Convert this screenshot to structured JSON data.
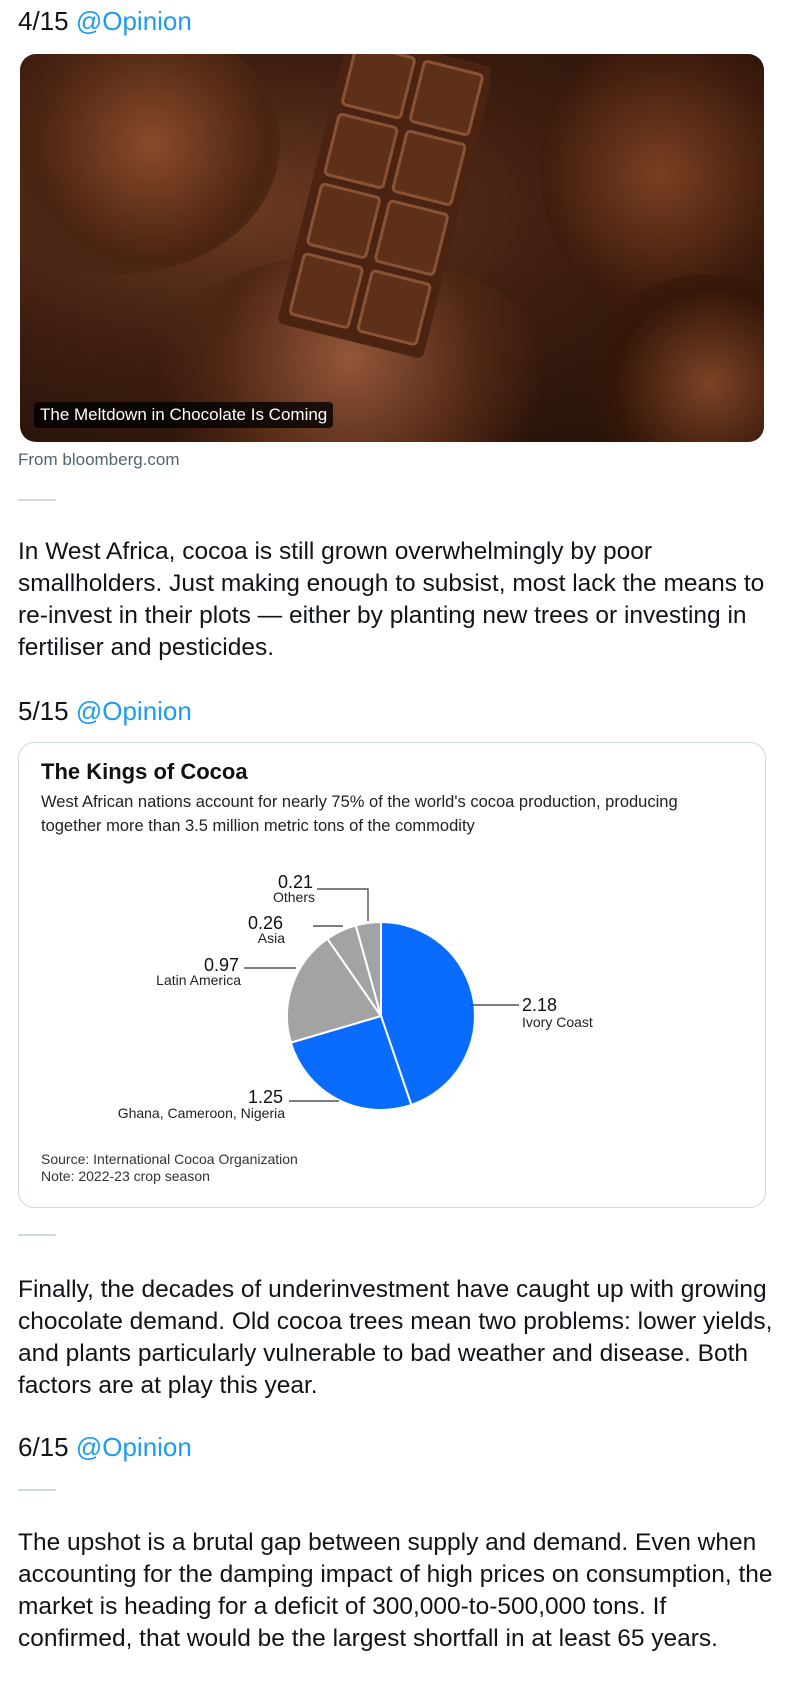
{
  "tweets": [
    {
      "index": "4/15",
      "handle": "@Opinion"
    },
    {
      "index": "5/15",
      "handle": "@Opinion"
    },
    {
      "index": "6/15",
      "handle": "@Opinion"
    }
  ],
  "link_card": {
    "headline": "The Meltdown in Chocolate Is Coming",
    "source": "From bloomberg.com"
  },
  "paragraphs": [
    "In West Africa, cocoa is still grown overwhelmingly by poor smallholders. Just making enough to subsist, most lack the means to re-invest in their plots — either by planting new trees or investing in fertiliser and pesticides.",
    "Finally, the decades of underinvestment have caught up with growing chocolate demand. Old cocoa trees mean two problems:  lower yields, and plants particularly vulnerable to bad weather and disease. Both factors are at play this year.",
    "The upshot is a brutal gap between supply and demand. Even when accounting for the damping impact of high prices on consumption, the market is heading for a deficit of 300,000-to-500,000 tons. If confirmed, that would be the largest shortfall in at least 65 years."
  ],
  "chart_data": {
    "type": "pie",
    "title": "The Kings of Cocoa",
    "subtitle": "West African nations account for nearly 75% of the world's cocoa production, producing together more than 3.5 million metric tons of the commodity",
    "source": "Source: International Cocoa Organization",
    "note": "Note: 2022-23 crop season",
    "slices": [
      {
        "label": "Ivory Coast",
        "value": 2.18,
        "value_label": "2.18",
        "color": "#0a6cff"
      },
      {
        "label": "Ghana, Cameroon, Nigeria",
        "value": 1.25,
        "value_label": "1.25",
        "color": "#0a6cff"
      },
      {
        "label": "Latin America",
        "value": 0.97,
        "value_label": "0.97",
        "color": "#a3a3a3"
      },
      {
        "label": "Asia",
        "value": 0.26,
        "value_label": "0.26",
        "color": "#a3a3a3"
      },
      {
        "label": "Others",
        "value": 0.21,
        "value_label": "0.21",
        "color": "#a3a3a3"
      }
    ]
  }
}
